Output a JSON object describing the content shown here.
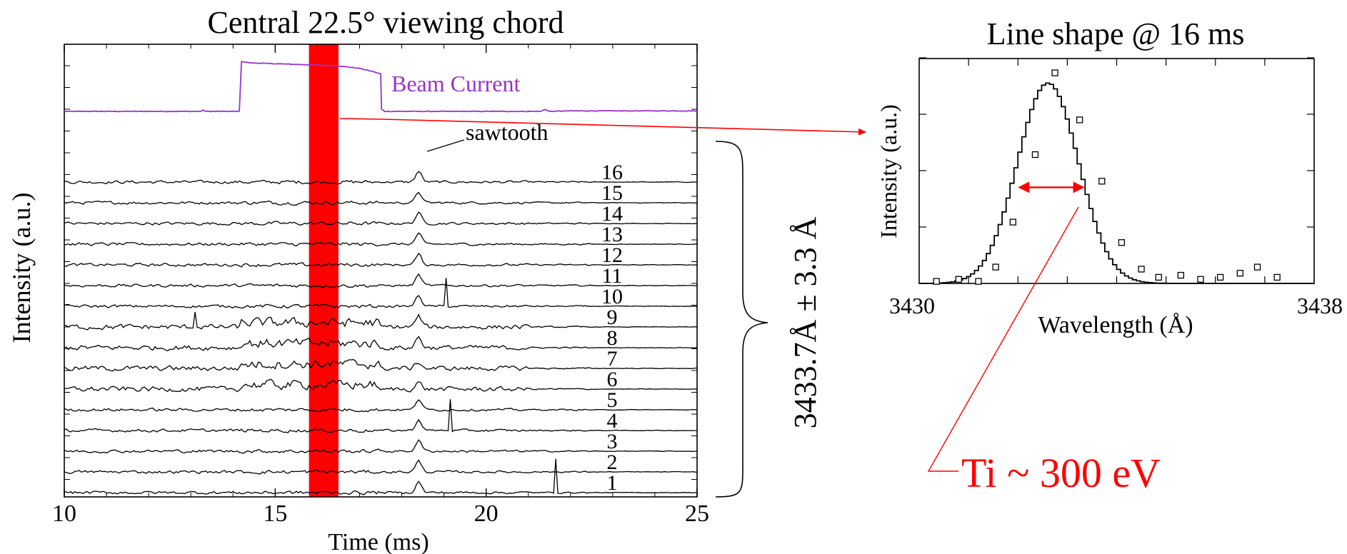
{
  "colors": {
    "axis": "#000000",
    "trace": "#000000",
    "beam": "#9933cc",
    "highlight": "#ff0000",
    "annotation": "#ff0000"
  },
  "chart_data": [
    {
      "type": "line",
      "title": "Central 22.5° viewing chord",
      "xlabel": "Time (ms)",
      "ylabel": "Intensity (a.u.)",
      "xlim": [
        10,
        25
      ],
      "x_ticks": [
        "10",
        "15",
        "20",
        "25"
      ],
      "highlight_band": {
        "x": [
          15.8,
          16.5
        ],
        "color": "#ff0000"
      },
      "beam_series": {
        "name": "Beam Current",
        "x": [
          10,
          13.25,
          13.3,
          13.35,
          14.15,
          14.2,
          14.4,
          15.5,
          16.5,
          17.0,
          17.3,
          17.5,
          17.52,
          17.6,
          21.3,
          21.4,
          21.5,
          22,
          25
        ],
        "values": [
          0,
          0,
          0.03,
          0,
          0,
          1.0,
          0.97,
          0.94,
          0.91,
          0.86,
          0.8,
          0.75,
          0.04,
          0.0,
          0.0,
          0.04,
          0.0,
          0.01,
          0.01
        ]
      },
      "channels": [
        "16",
        "15",
        "14",
        "13",
        "12",
        "11",
        "10",
        "9",
        "8",
        "7",
        "6",
        "5",
        "4",
        "3",
        "2",
        "1"
      ],
      "channel_offsets": [
        16,
        15,
        14,
        13,
        12,
        11,
        10,
        9,
        8,
        7,
        6,
        5,
        4,
        3,
        2,
        1
      ],
      "features": {
        "sawtooth_time": 18.4,
        "spikes": [
          {
            "channel": "10",
            "t": 19.05,
            "amp": 1.3
          },
          {
            "channel": "9",
            "t": 13.1,
            "amp": 0.8
          },
          {
            "channel": "4",
            "t": 19.15,
            "amp": 1.5
          },
          {
            "channel": "1",
            "t": 21.65,
            "amp": 1.6
          }
        ]
      },
      "annotations": {
        "beam_label": "Beam Current",
        "sawtooth_label": "sawtooth",
        "wavelength_label": "3433.7Å ± 3.3 Å"
      }
    },
    {
      "type": "scatter",
      "title": "Line shape @ 16 ms",
      "xlabel": "Wavelength (Å)",
      "ylabel": "Intensity (a.u.)",
      "xlim": [
        3430,
        3438
      ],
      "ylim": [
        0,
        1.1
      ],
      "x_ticks": [
        "3430",
        "3438"
      ],
      "points": {
        "x": [
          3430.35,
          3430.8,
          3431.2,
          3431.55,
          3431.9,
          3432.35,
          3432.75,
          3433.25,
          3433.7,
          3434.1,
          3434.5,
          3434.85,
          3435.3,
          3435.7,
          3436.1,
          3436.5,
          3436.85,
          3437.25
        ],
        "values": [
          0.01,
          0.02,
          0.01,
          0.08,
          0.3,
          0.63,
          1.03,
          0.8,
          0.5,
          0.2,
          0.07,
          0.03,
          0.04,
          0.02,
          0.03,
          0.05,
          0.08,
          0.03
        ]
      },
      "fit_series": {
        "name": "Gaussian fit",
        "center": 3432.65,
        "amplitude": 0.98,
        "sigma": 0.62
      },
      "fwhm_marker": {
        "x": [
          3432.0,
          3433.35
        ],
        "y": 0.47
      },
      "annotations": {
        "ti_label": "Ti ~ 300 eV"
      }
    }
  ]
}
